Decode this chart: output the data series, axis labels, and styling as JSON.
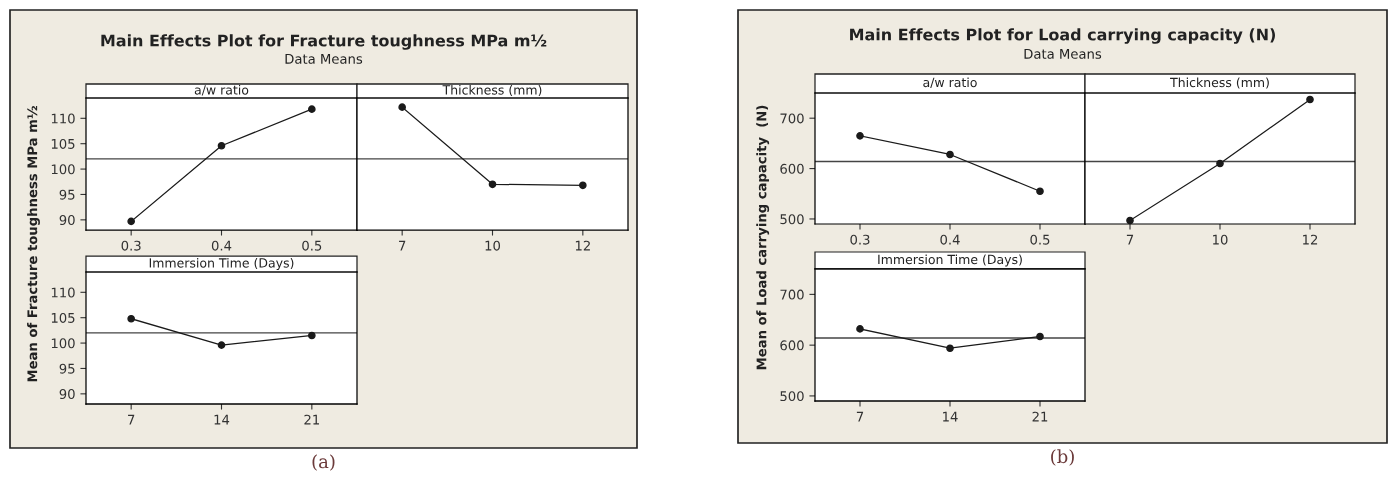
{
  "chart_data": [
    {
      "type": "line",
      "title": "a/w ratio",
      "ylabel": "Mean of Fracture toughness MPa m½",
      "annotations": [
        "Main Effects Plot for Fracture toughness MPa m½",
        "Data Means",
        "(a)"
      ],
      "categories": [
        "0.3",
        "0.4",
        "0.5"
      ],
      "values": [
        89.7,
        104.6,
        111.8
      ],
      "color": "#1a1a1a",
      "marker": "circle",
      "ylim": [
        88,
        114
      ],
      "yticks": [
        90,
        95,
        100,
        105,
        110
      ],
      "ref_lines": [
        {
          "axis": "y",
          "value": 102,
          "color": "#444444"
        }
      ]
    },
    {
      "type": "line",
      "title": "Thickness (mm)",
      "categories": [
        "7",
        "10",
        "12"
      ],
      "values": [
        112.2,
        97.0,
        96.8
      ],
      "color": "#1a1a1a",
      "marker": "circle",
      "ylim": [
        88,
        114
      ],
      "yticks": [
        90,
        95,
        100,
        105,
        110
      ],
      "tick_labels": "x",
      "ref_lines": [
        {
          "axis": "y",
          "value": 102,
          "color": "#444444"
        }
      ]
    },
    {
      "type": "line",
      "title": "Immersion Time (Days)",
      "categories": [
        "7",
        "14",
        "21"
      ],
      "values": [
        104.8,
        99.6,
        101.5
      ],
      "color": "#1a1a1a",
      "marker": "circle",
      "ylim": [
        88,
        114
      ],
      "yticks": [
        90,
        95,
        100,
        105,
        110
      ],
      "ref_lines": [
        {
          "axis": "y",
          "value": 102,
          "color": "#444444"
        }
      ]
    },
    {
      "type": "line",
      "title": "a/w ratio",
      "ylabel": "Mean of Load carrying capacity  (N)",
      "annotations": [
        "Main Effects Plot for Load carrying capacity (N)",
        "Data Means",
        "(b)"
      ],
      "categories": [
        "0.3",
        "0.4",
        "0.5"
      ],
      "values": [
        665,
        628,
        555
      ],
      "color": "#1a1a1a",
      "marker": "circle",
      "ylim": [
        490,
        750
      ],
      "yticks": [
        500,
        600,
        700
      ],
      "ref_lines": [
        {
          "axis": "y",
          "value": 614,
          "color": "#444444"
        }
      ]
    },
    {
      "type": "line",
      "title": "Thickness (mm)",
      "categories": [
        "7",
        "10",
        "12"
      ],
      "values": [
        497,
        610,
        737
      ],
      "color": "#1a1a1a",
      "marker": "circle",
      "ylim": [
        490,
        750
      ],
      "yticks": [
        500,
        600,
        700
      ],
      "tick_labels": "x",
      "ref_lines": [
        {
          "axis": "y",
          "value": 614,
          "color": "#444444"
        }
      ]
    },
    {
      "type": "line",
      "title": "Immersion Time (Days)",
      "categories": [
        "7",
        "14",
        "21"
      ],
      "values": [
        632,
        594,
        617
      ],
      "color": "#1a1a1a",
      "marker": "circle",
      "ylim": [
        490,
        750
      ],
      "yticks": [
        500,
        600,
        700
      ],
      "ref_lines": [
        {
          "axis": "y",
          "value": 614,
          "color": "#444444"
        }
      ]
    }
  ]
}
